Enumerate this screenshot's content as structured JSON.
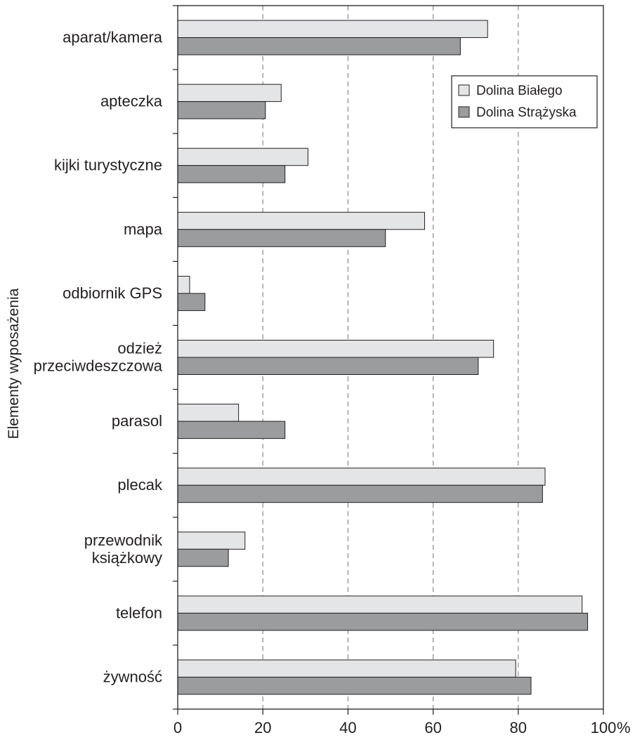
{
  "chart_data": {
    "type": "bar",
    "orientation": "horizontal",
    "ylabel": "Elementy wyposażenia",
    "xlabel": "",
    "x_unit": "%",
    "xlim": [
      0,
      100
    ],
    "x_ticks": [
      "0",
      "20",
      "40",
      "60",
      "80",
      "100"
    ],
    "grid": "vertical dashed",
    "legend_position": "top-right",
    "categories": [
      [
        "aparat/kamera"
      ],
      [
        "apteczka"
      ],
      [
        "kijki turystyczne"
      ],
      [
        "mapa"
      ],
      [
        "odbiornik GPS"
      ],
      [
        "odzież",
        "przeciwdeszczowa"
      ],
      [
        "parasol"
      ],
      [
        "plecak"
      ],
      [
        "przewodnik",
        "książkowy"
      ],
      [
        "telefon"
      ],
      [
        "żywność"
      ]
    ],
    "series": [
      {
        "name": "Dolina Białego",
        "color": "#e4e5e6",
        "values": [
          72.8,
          24.3,
          30.6,
          58.0,
          2.8,
          74.2,
          14.3,
          86.3,
          15.8,
          95.0,
          79.4
        ]
      },
      {
        "name": "Dolina Strążyska",
        "color": "#9b9c9e",
        "values": [
          66.4,
          20.6,
          25.2,
          48.8,
          6.4,
          70.6,
          25.2,
          85.7,
          11.9,
          96.3,
          83.0
        ]
      }
    ]
  }
}
